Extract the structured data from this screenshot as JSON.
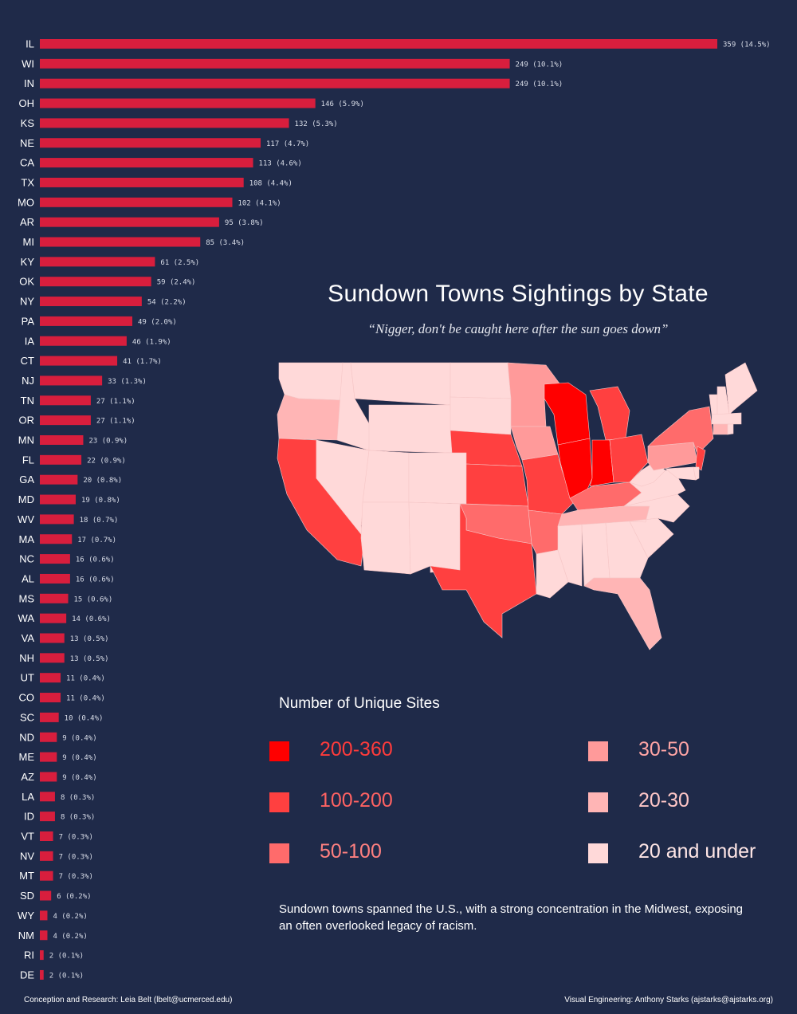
{
  "chart_data": {
    "type": "bar",
    "orientation": "horizontal",
    "title": "Sundown Towns Sightings by State",
    "subtitle": "“Nigger, don't be caught here after the sun goes down”",
    "categories": [
      "IL",
      "WI",
      "IN",
      "OH",
      "KS",
      "NE",
      "CA",
      "TX",
      "MO",
      "AR",
      "MI",
      "KY",
      "OK",
      "NY",
      "PA",
      "IA",
      "CT",
      "NJ",
      "TN",
      "OR",
      "MN",
      "FL",
      "GA",
      "MD",
      "WV",
      "MA",
      "NC",
      "AL",
      "MS",
      "WA",
      "VA",
      "NH",
      "UT",
      "CO",
      "SC",
      "ND",
      "ME",
      "AZ",
      "LA",
      "ID",
      "VT",
      "NV",
      "MT",
      "SD",
      "WY",
      "NM",
      "RI",
      "DE"
    ],
    "values": [
      359,
      249,
      249,
      146,
      132,
      117,
      113,
      108,
      102,
      95,
      85,
      61,
      59,
      54,
      49,
      46,
      41,
      33,
      27,
      27,
      23,
      22,
      20,
      19,
      18,
      17,
      16,
      16,
      15,
      14,
      13,
      13,
      11,
      11,
      10,
      9,
      9,
      9,
      8,
      8,
      7,
      7,
      7,
      6,
      4,
      4,
      2,
      2
    ],
    "value_labels": [
      "359 (14.5%)",
      "249 (10.1%)",
      "249 (10.1%)",
      "146 (5.9%)",
      "132 (5.3%)",
      "117 (4.7%)",
      "113 (4.6%)",
      "108 (4.4%)",
      "102 (4.1%)",
      "95 (3.8%)",
      "85 (3.4%)",
      "61 (2.5%)",
      "59 (2.4%)",
      "54 (2.2%)",
      "49 (2.0%)",
      "46 (1.9%)",
      "41 (1.7%)",
      "33 (1.3%)",
      "27 (1.1%)",
      "27 (1.1%)",
      "23 (0.9%)",
      "22 (0.9%)",
      "20 (0.8%)",
      "19 (0.8%)",
      "18 (0.7%)",
      "17 (0.7%)",
      "16 (0.6%)",
      "16 (0.6%)",
      "15 (0.6%)",
      "14 (0.6%)",
      "13 (0.5%)",
      "13 (0.5%)",
      "11 (0.4%)",
      "11 (0.4%)",
      "10 (0.4%)",
      "9 (0.4%)",
      "9 (0.4%)",
      "9 (0.4%)",
      "8 (0.3%)",
      "8 (0.3%)",
      "7 (0.3%)",
      "7 (0.3%)",
      "7 (0.3%)",
      "6 (0.2%)",
      "4 (0.2%)",
      "4 (0.2%)",
      "2 (0.1%)",
      "2 (0.1%)"
    ],
    "bar_color": "#d81e3d",
    "xlim": [
      0,
      359
    ],
    "map": {
      "type": "choropleth",
      "legend_title": "Number of Unique Sites",
      "bins": [
        {
          "label": "200-360",
          "color": "#ff0000"
        },
        {
          "label": "100-200",
          "color": "#ff4040"
        },
        {
          "label": "50-100",
          "color": "#ff6b6b"
        },
        {
          "label": "30-50",
          "color": "#ff9a9a"
        },
        {
          "label": "20-30",
          "color": "#ffb5b5"
        },
        {
          "label": "20 and under",
          "color": "#ffd9d9"
        }
      ]
    }
  },
  "description": "Sundown towns spanned the U.S., with a strong concentration in the Midwest, exposing an often overlooked legacy of racism.",
  "footer": {
    "left": "Conception and Research: Leia Belt (lbelt@ucmerced.edu)",
    "right": "Visual Engineering: Anthony Starks (ajstarks@ajstarks.org)"
  },
  "colors": {
    "background": "#1f2a49",
    "bar": "#d81e3d"
  }
}
